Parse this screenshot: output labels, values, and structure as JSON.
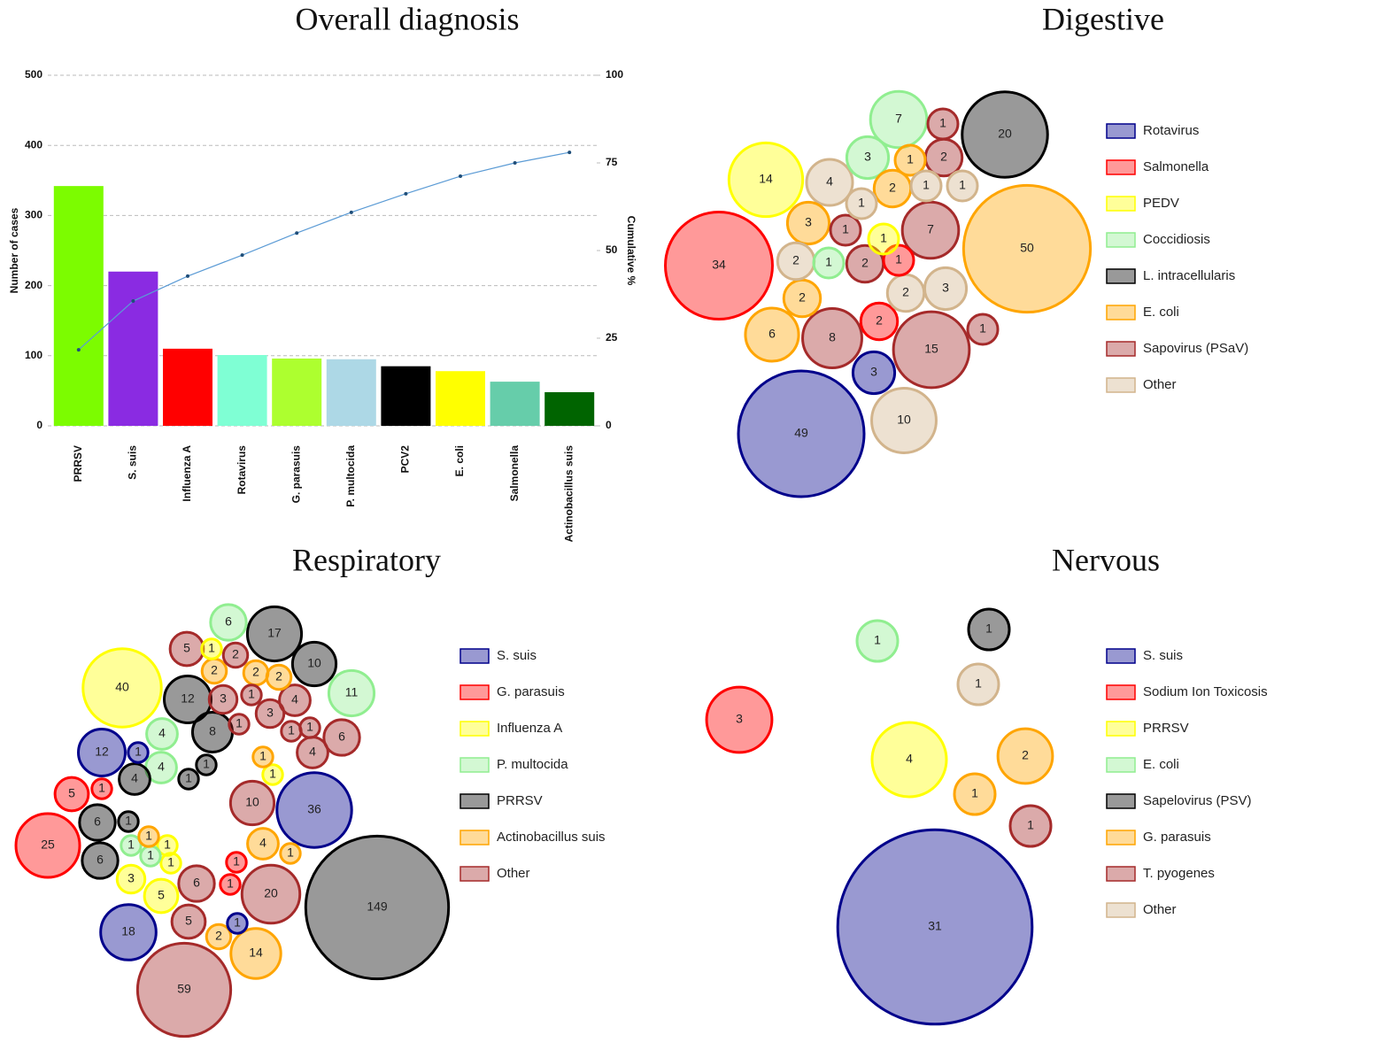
{
  "chart_data": [
    {
      "type": "bar",
      "title": "Overall diagnosis",
      "y_label": "Number of cases",
      "y2_label": "Cumulative %",
      "categories": [
        "PRRSV",
        "S. suis",
        "Influenza A",
        "Rotavirus",
        "G. parasuis",
        "P. multocida",
        "PCV2",
        "E. coli",
        "Salmonella",
        "Actinobacillus suis"
      ],
      "series": [
        {
          "values": [
            342,
            220,
            110,
            101,
            96,
            95,
            85,
            78,
            63,
            48
          ],
          "colors": [
            "#7cfc00",
            "#8a2be2",
            "#ff0000",
            "#7fffd4",
            "#adff2f",
            "#add8e6",
            "#000000",
            "#ffff00",
            "#66cdaa",
            "#006400"
          ]
        },
        {
          "type": "line",
          "values": [
            21.7,
            35.6,
            42.7,
            48.7,
            55,
            60.9,
            66.2,
            71.2,
            75,
            78
          ],
          "color": "#5b9bd5",
          "axis": "y2"
        }
      ],
      "ylim": [
        0,
        500
      ],
      "yticks": [
        0,
        100,
        200,
        300,
        400,
        500
      ],
      "y2lim": [
        0,
        100
      ],
      "y2ticks": [
        0,
        25,
        50,
        75,
        100
      ],
      "grid": true
    },
    {
      "type": "euler",
      "title": "Digestive",
      "series": [
        {
          "name": "Rotavirus",
          "color": "#00008b",
          "values": [
            3,
            49
          ]
        },
        {
          "name": "Salmonella",
          "color": "#ff0000",
          "values": [
            34,
            1,
            2
          ]
        },
        {
          "name": "PEDV",
          "color": "#ffff00",
          "values": [
            14,
            1
          ]
        },
        {
          "name": "Coccidiosis",
          "color": "#90ee90",
          "values": [
            7,
            3,
            1
          ]
        },
        {
          "name": "L. intracellularis",
          "color": "#000000",
          "values": [
            20
          ]
        },
        {
          "name": "E. coli",
          "color": "#ffa500",
          "values": [
            1,
            2,
            3,
            50,
            2,
            6
          ]
        },
        {
          "name": "Sapovirus (PSaV)",
          "color": "#a52a2a",
          "values": [
            1,
            2,
            1,
            7,
            2,
            8,
            15,
            1
          ]
        },
        {
          "name": "Other",
          "color": "#d2b48c",
          "values": [
            4,
            1,
            1,
            1,
            2,
            2,
            3,
            10
          ]
        }
      ]
    },
    {
      "type": "euler",
      "title": "Respiratory",
      "series": [
        {
          "name": "S. suis",
          "color": "#00008b",
          "values": [
            12,
            1,
            36,
            18,
            1
          ]
        },
        {
          "name": "G. parasuis",
          "color": "#ff0000",
          "values": [
            5,
            1,
            25,
            1,
            1
          ]
        },
        {
          "name": "Influenza A",
          "color": "#ffff00",
          "values": [
            1,
            40,
            1,
            1,
            1,
            3,
            5
          ]
        },
        {
          "name": "P. multocida",
          "color": "#90ee90",
          "values": [
            6,
            11,
            4,
            4,
            1,
            1
          ]
        },
        {
          "name": "PRRSV",
          "color": "#000000",
          "values": [
            17,
            10,
            12,
            8,
            1,
            4,
            1,
            6,
            1,
            6,
            149
          ]
        },
        {
          "name": "Actinobacillus suis",
          "color": "#ffa500",
          "values": [
            2,
            2,
            2,
            1,
            1,
            4,
            1,
            2,
            14
          ]
        },
        {
          "name": "Other",
          "color": "#a52a2a",
          "values": [
            5,
            2,
            3,
            1,
            3,
            4,
            1,
            1,
            1,
            6,
            4,
            10,
            6,
            20,
            5,
            59
          ]
        }
      ]
    },
    {
      "type": "euler",
      "title": "Nervous",
      "series": [
        {
          "name": "S. suis",
          "color": "#00008b",
          "values": [
            31
          ]
        },
        {
          "name": "Sodium Ion Toxicosis",
          "color": "#ff0000",
          "values": [
            3
          ]
        },
        {
          "name": "PRRSV",
          "color": "#ffff00",
          "values": [
            4
          ]
        },
        {
          "name": "E. coli",
          "color": "#90ee90",
          "values": [
            1
          ]
        },
        {
          "name": "Sapelovirus (PSV)",
          "color": "#000000",
          "values": [
            1
          ]
        },
        {
          "name": "G. parasuis",
          "color": "#ffa500",
          "values": [
            2,
            1
          ]
        },
        {
          "name": "T. pyogenes",
          "color": "#a52a2a",
          "values": [
            1
          ]
        },
        {
          "name": "Other",
          "color": "#d2b48c",
          "values": [
            1
          ]
        }
      ]
    }
  ]
}
